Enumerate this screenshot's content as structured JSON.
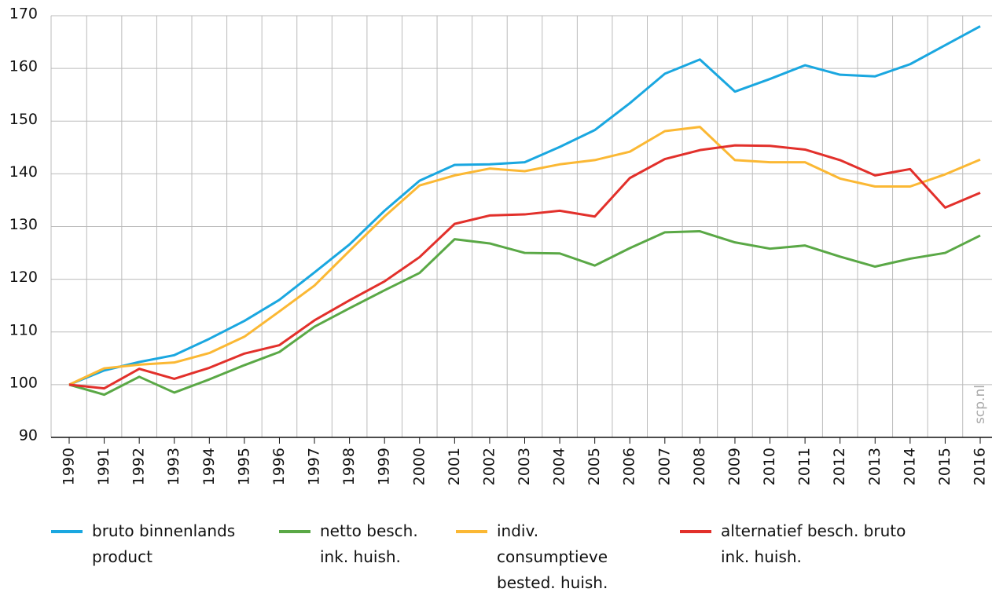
{
  "chart_data": {
    "type": "line",
    "categories": [
      "1990",
      "1991",
      "1992",
      "1993",
      "1994",
      "1995",
      "1996",
      "1997",
      "1998",
      "1999",
      "2000",
      "2001",
      "2002",
      "2003",
      "2004",
      "2005",
      "2006",
      "2007",
      "2008",
      "2009",
      "2010",
      "2011",
      "2012",
      "2013",
      "2014",
      "2015",
      "2016"
    ],
    "series": [
      {
        "name": "bruto binnenlands product",
        "color": "#1aa7e0",
        "values": [
          100,
          102.7,
          104.3,
          105.6,
          108.7,
          112.1,
          116.1,
          121.3,
          126.6,
          133.0,
          138.7,
          141.7,
          141.8,
          142.2,
          145.1,
          148.3,
          153.4,
          159.0,
          161.7,
          155.6,
          158.0,
          160.6,
          158.8,
          158.5,
          160.8,
          164.4,
          168.0
        ]
      },
      {
        "name": "netto besch. ink. huish.",
        "color": "#5aa846",
        "values": [
          100,
          98.1,
          101.5,
          98.5,
          101.0,
          103.7,
          106.2,
          111.0,
          114.5,
          117.9,
          121.2,
          127.6,
          126.8,
          125.0,
          124.9,
          122.6,
          125.9,
          128.9,
          129.1,
          127.0,
          125.8,
          126.4,
          124.3,
          122.4,
          123.9,
          125.0,
          128.3
        ]
      },
      {
        "name": "indiv. consumptieve bested. huish.",
        "color": "#fbb834",
        "values": [
          100,
          103.1,
          103.8,
          104.2,
          106.0,
          109.1,
          113.9,
          118.8,
          125.4,
          131.9,
          137.8,
          139.7,
          141.0,
          140.5,
          141.8,
          142.6,
          144.2,
          148.1,
          148.9,
          142.6,
          142.2,
          142.2,
          139.1,
          137.6,
          137.6,
          139.9,
          142.7
        ]
      },
      {
        "name": "alternatief besch. bruto ink. huish.",
        "color": "#e2302b",
        "values": [
          100,
          99.3,
          103.0,
          101.1,
          103.2,
          105.9,
          107.5,
          112.2,
          116.0,
          119.6,
          124.2,
          130.5,
          132.1,
          132.3,
          133.0,
          131.9,
          139.2,
          142.8,
          144.5,
          145.4,
          145.3,
          144.6,
          142.6,
          139.7,
          140.9,
          133.6,
          136.4
        ]
      }
    ],
    "ylim": [
      90,
      170
    ],
    "yticks": [
      90,
      100,
      110,
      120,
      130,
      140,
      150,
      160,
      170
    ],
    "grid": true,
    "watermark": "scp.nl"
  }
}
